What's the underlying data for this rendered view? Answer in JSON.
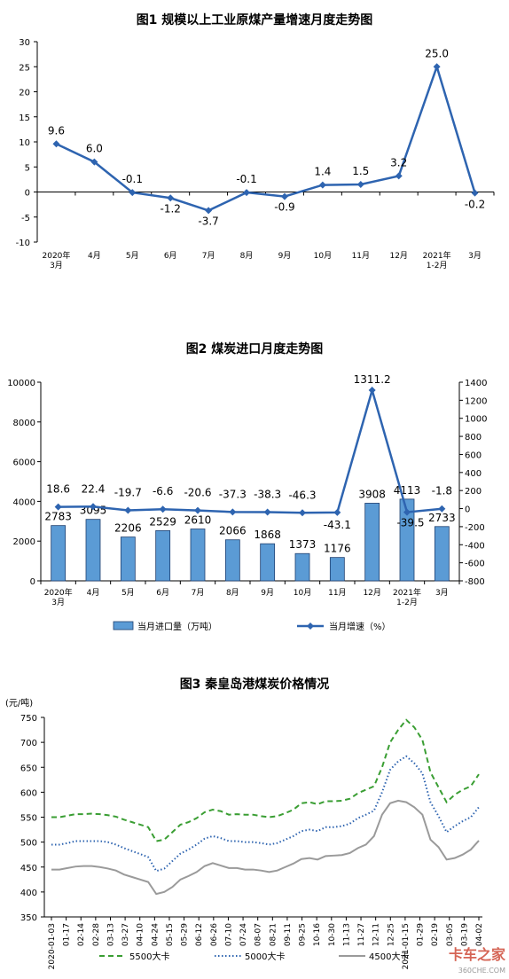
{
  "watermark": {
    "logo_text": "卡车之家",
    "domain": "360CHE.COM"
  },
  "chart_data": [
    {
      "type": "line",
      "title": "图1 规模以上工业原煤产量增速月度走势图",
      "categories": [
        [
          "2020年",
          "3月"
        ],
        [
          "4月"
        ],
        [
          "5月"
        ],
        [
          "6月"
        ],
        [
          "7月"
        ],
        [
          "8月"
        ],
        [
          "9月"
        ],
        [
          "10月"
        ],
        [
          "11月"
        ],
        [
          "12月"
        ],
        [
          "2021年",
          "1-2月"
        ],
        [
          "3月"
        ]
      ],
      "values": [
        9.6,
        6.0,
        -0.1,
        -1.2,
        -3.7,
        -0.1,
        -0.9,
        1.4,
        1.5,
        3.2,
        25.0,
        -0.2
      ],
      "value_labels": [
        "9.6",
        "6.0",
        "-0.1",
        "-1.2",
        "-3.7",
        "-0.1",
        "-0.9",
        "1.4",
        "1.5",
        "3.2",
        "25.0",
        "-0.2"
      ],
      "ylim": [
        -10,
        30
      ],
      "yticks": [
        "-10",
        "-5",
        "0",
        "5",
        "10",
        "15",
        "20",
        "25",
        "30"
      ],
      "color": "#2e64b0",
      "grid": false
    },
    {
      "type": "bar",
      "title": "图2 煤炭进口月度走势图",
      "categories": [
        [
          "2020年",
          "3月"
        ],
        [
          "4月"
        ],
        [
          "5月"
        ],
        [
          "6月"
        ],
        [
          "7月"
        ],
        [
          "8月"
        ],
        [
          "9月"
        ],
        [
          "10月"
        ],
        [
          "11月"
        ],
        [
          "12月"
        ],
        [
          "2021年",
          "1-2月"
        ],
        [
          "3月"
        ]
      ],
      "series": [
        {
          "name": "当月进口量（万吨）",
          "type": "bar",
          "axis": "left",
          "values": [
            2783,
            3095,
            2206,
            2529,
            2610,
            2066,
            1868,
            1373,
            1176,
            3908,
            4113,
            2733
          ],
          "labels": [
            "2783",
            "3095",
            "2206",
            "2529",
            "2610",
            "2066",
            "1868",
            "1373",
            "1176",
            "3908",
            "4113",
            "2733"
          ],
          "color": "#5b9bd5"
        },
        {
          "name": "当月增速（%）",
          "type": "line",
          "axis": "right",
          "values": [
            18.6,
            22.4,
            -19.7,
            -6.6,
            -20.6,
            -37.3,
            -38.3,
            -46.3,
            -43.1,
            1311.2,
            -39.5,
            -1.8
          ],
          "labels": [
            "18.6",
            "22.4",
            "-19.7",
            "-6.6",
            "-20.6",
            "-37.3",
            "-38.3",
            "-46.3",
            "-43.1",
            "1311.2",
            "-39.5",
            "-1.8"
          ],
          "color": "#2e64b0"
        }
      ],
      "ylim_left": [
        0,
        10000
      ],
      "yticks_left": [
        "0",
        "2000",
        "4000",
        "6000",
        "8000",
        "10000"
      ],
      "ylim_right": [
        -800,
        1400
      ],
      "yticks_right": [
        "-800",
        "-600",
        "-400",
        "-200",
        "0",
        "200",
        "400",
        "600",
        "800",
        "1000",
        "1200",
        "1400"
      ],
      "legend": "bottom",
      "grid": false
    },
    {
      "type": "line",
      "title": "图3 秦皇岛港煤炭价格情况",
      "yunit": "(元/吨)",
      "ylim": [
        350,
        750
      ],
      "yticks": [
        "350",
        "400",
        "450",
        "500",
        "550",
        "600",
        "650",
        "700",
        "750"
      ],
      "x_tick_labels": [
        "2020-01-03",
        "01-17",
        "02-14",
        "02-28",
        "03-13",
        "03-27",
        "04-10",
        "04-24",
        "05-15",
        "05-29",
        "06-12",
        "06-26",
        "07-10",
        "07-24",
        "08-07",
        "08-21",
        "09-11",
        "09-25",
        "10-16",
        "10-30",
        "11-13",
        "11-27",
        "12-11",
        "12-25",
        "2021-01-15",
        "01-29",
        "02-19",
        "03-05",
        "03-19",
        "04-02"
      ],
      "series": [
        {
          "name": "5500大卡",
          "color": "#3a9e33",
          "dash": "6 4",
          "values": [
            550,
            550,
            553,
            556,
            556,
            557,
            556,
            554,
            551,
            545,
            540,
            535,
            530,
            502,
            505,
            520,
            535,
            540,
            548,
            560,
            565,
            562,
            555,
            556,
            555,
            555,
            552,
            550,
            552,
            558,
            565,
            578,
            580,
            576,
            582,
            582,
            583,
            587,
            598,
            605,
            612,
            650,
            700,
            725,
            745,
            730,
            705,
            640,
            610,
            580,
            595,
            605,
            612,
            636
          ]
        },
        {
          "name": "5000大卡",
          "color": "#2e64b0",
          "dash": "1.5 2.5",
          "values": [
            495,
            495,
            498,
            502,
            502,
            502,
            502,
            500,
            495,
            488,
            482,
            476,
            470,
            442,
            447,
            462,
            477,
            485,
            495,
            507,
            512,
            508,
            502,
            502,
            500,
            500,
            498,
            495,
            498,
            505,
            512,
            522,
            525,
            522,
            530,
            530,
            532,
            537,
            548,
            555,
            563,
            600,
            645,
            662,
            672,
            658,
            638,
            580,
            552,
            520,
            532,
            542,
            550,
            570
          ]
        },
        {
          "name": "4500大卡",
          "color": "#9a9a9a",
          "dash": "",
          "values": [
            445,
            445,
            448,
            451,
            452,
            452,
            450,
            447,
            443,
            435,
            430,
            425,
            420,
            396,
            400,
            410,
            425,
            432,
            440,
            452,
            458,
            453,
            448,
            448,
            445,
            445,
            443,
            440,
            443,
            450,
            457,
            466,
            468,
            465,
            472,
            473,
            474,
            478,
            488,
            495,
            512,
            555,
            578,
            583,
            580,
            570,
            555,
            505,
            490,
            465,
            468,
            475,
            485,
            503
          ]
        }
      ],
      "legend": "bottom",
      "grid": false
    }
  ]
}
